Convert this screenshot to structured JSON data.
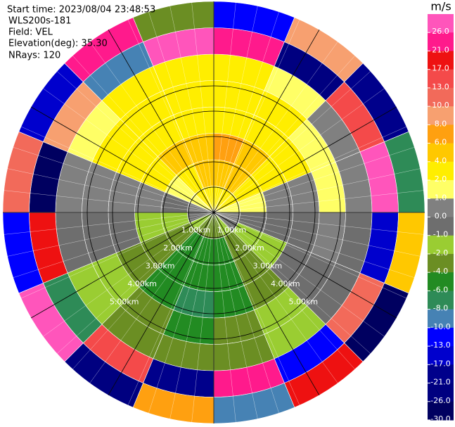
{
  "header": {
    "start_time": "Start time: 2023/08/04 23:48:53",
    "instrument": "WLS200s-181",
    "field": "Field: VEL",
    "elevation": "Elevation(deg): 35.30",
    "nrays": "NRays: 120"
  },
  "range_rings": [
    "1.00km",
    "2.00km",
    "3.00km",
    "4.00km",
    "5.00km"
  ],
  "colorbar": {
    "unit": "m/s",
    "levels": [
      {
        "value": 26,
        "label": "26.0"
      },
      {
        "value": 21,
        "label": "21.0"
      },
      {
        "value": 17,
        "label": "17.0"
      },
      {
        "value": 13,
        "label": "13.0"
      },
      {
        "value": 10,
        "label": "10.0"
      },
      {
        "value": 8,
        "label": "8.0"
      },
      {
        "value": 6,
        "label": "6.0"
      },
      {
        "value": 4,
        "label": "4.0"
      },
      {
        "value": 2,
        "label": "2.0"
      },
      {
        "value": 1,
        "label": "1.0"
      },
      {
        "value": 0,
        "label": "0.0"
      },
      {
        "value": -1,
        "label": "-1.0"
      },
      {
        "value": -2,
        "label": "-2.0"
      },
      {
        "value": -4,
        "label": "-4.0"
      },
      {
        "value": -6,
        "label": "-6.0"
      },
      {
        "value": -8,
        "label": "-8.0"
      },
      {
        "value": -10,
        "label": "-10.0"
      },
      {
        "value": -13,
        "label": "-13.0"
      },
      {
        "value": -17,
        "label": "-17.0"
      },
      {
        "value": -21,
        "label": "-21.0"
      },
      {
        "value": -26,
        "label": "-26.0"
      },
      {
        "value": -30,
        "label": "-30.0"
      }
    ],
    "colors": [
      "#ff55bb",
      "#ff1a8c",
      "#ee1111",
      "#f44a4a",
      "#f26a5a",
      "#f7a070",
      "#ffa010",
      "#ffc800",
      "#ffee00",
      "#ffff66",
      "#808080",
      "#6e6e6e",
      "#9acd32",
      "#6b8e23",
      "#228b22",
      "#2e8b57",
      "#4682b4",
      "#0000ff",
      "#0000cd",
      "#00008b",
      "#000080",
      "#000060"
    ]
  },
  "field": {
    "values": [
      [
        3,
        5,
        6,
        3,
        2,
        2,
        22,
        -13
      ],
      [
        3,
        5,
        5,
        3,
        2,
        1,
        -26,
        8
      ],
      [
        2,
        3,
        3,
        2,
        1,
        0.5,
        13,
        -21
      ],
      [
        1,
        1,
        0.5,
        0.5,
        1,
        0,
        26,
        -8
      ],
      [
        0,
        -0.5,
        -1,
        -1,
        0,
        -0.5,
        -17,
        4
      ],
      [
        -1,
        -2,
        -2,
        -1,
        -1,
        -1,
        10,
        -30
      ],
      [
        -2,
        -4,
        -4,
        -3,
        -2,
        -2,
        -13,
        17
      ],
      [
        -3,
        -5,
        -6,
        -6,
        -4,
        -3,
        21,
        -10
      ],
      [
        -3,
        -6,
        -6,
        -7,
        -5,
        -4,
        -21,
        6
      ],
      [
        -3,
        -5,
        -6,
        -6,
        -4,
        -3,
        13,
        -26
      ],
      [
        -2,
        -4,
        -4,
        -3,
        -2,
        -2,
        -8,
        26
      ],
      [
        -1,
        -2,
        -2,
        -1,
        -1,
        -1,
        17,
        -13
      ],
      [
        0,
        -0.5,
        0,
        0.5,
        0,
        0.5,
        -30,
        10
      ],
      [
        1,
        1,
        2,
        2,
        2,
        1,
        8,
        -17
      ],
      [
        2,
        3,
        4,
        3,
        2,
        2,
        -10,
        21
      ],
      [
        3,
        5,
        5,
        3,
        2,
        2,
        26,
        -4
      ]
    ]
  }
}
